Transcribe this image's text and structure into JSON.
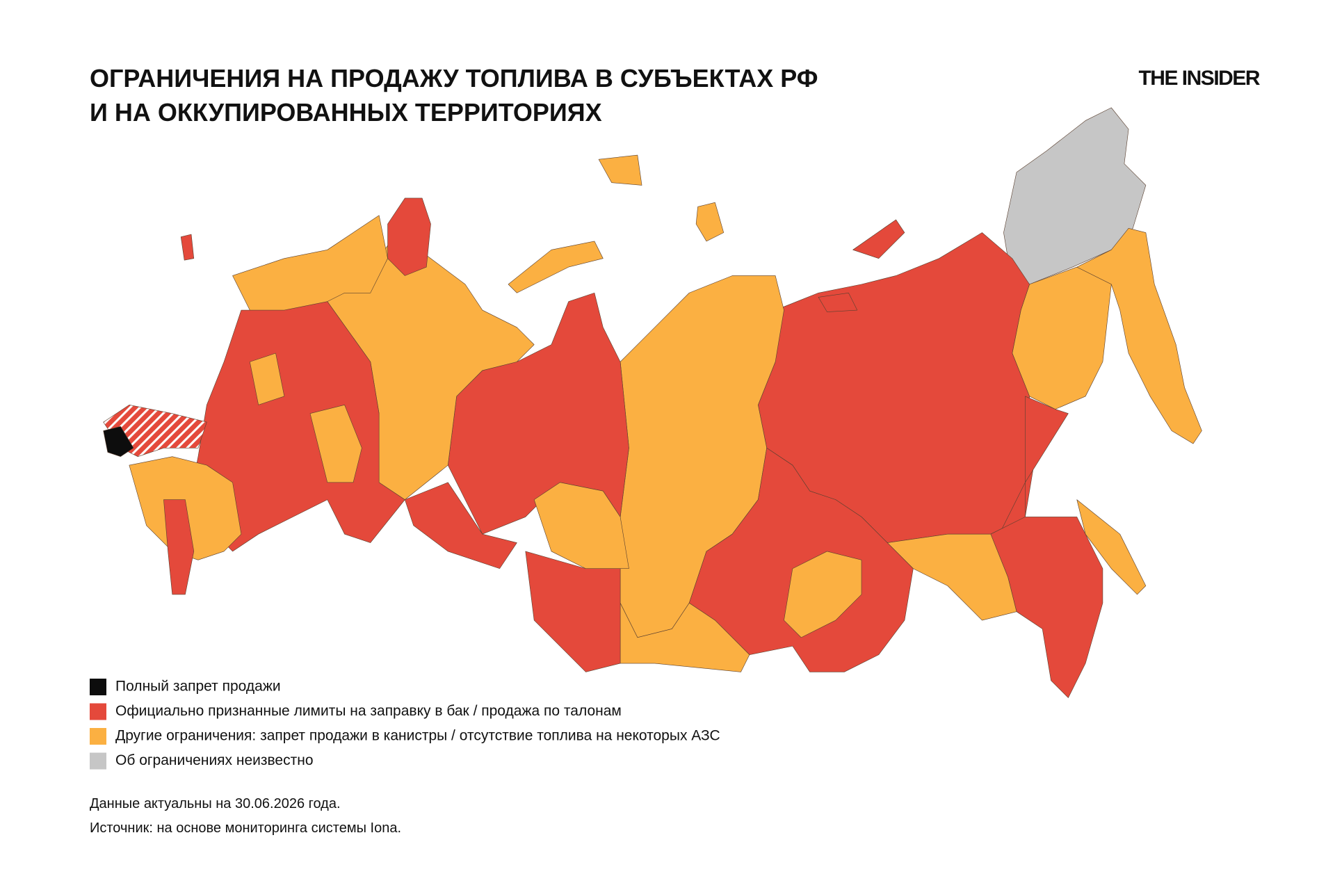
{
  "header": {
    "title_lines": [
      "ОГРАНИЧЕНИЯ НА ПРОДАЖУ ТОПЛИВА В СУБЪЕКТАХ РФ",
      "И НА ОККУПИРОВАННЫХ ТЕРРИТОРИЯХ"
    ],
    "logo": "THE INSIDER"
  },
  "legend": {
    "items": [
      {
        "label": "Полный запрет продажи",
        "color": "#0d0d0d"
      },
      {
        "label": "Официально признанные лимиты на заправку в бак / продажа по талонам",
        "color": "#e4493b"
      },
      {
        "label": "Другие ограничения: запрет продажи в канистры / отсутствие топлива на некоторых АЗС",
        "color": "#fbb042"
      },
      {
        "label": "Об ограничениях неизвестно",
        "color": "#c6c6c6"
      }
    ]
  },
  "notes": [
    "Данные актуальны на 30.06.2026 года.",
    "Источник: на основе мониторинга системы Iona."
  ]
}
